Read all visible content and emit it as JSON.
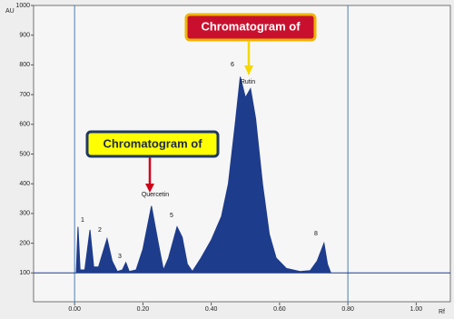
{
  "chart_data": {
    "type": "area",
    "y_label": "AU",
    "x_label": "Rf",
    "xlim": [
      -0.12,
      1.1
    ],
    "ylim": [
      0,
      1000
    ],
    "xticks": [
      {
        "value": 0,
        "label": "0.00"
      },
      {
        "value": 0.2,
        "label": "0.20"
      },
      {
        "value": 0.4,
        "label": "0.40"
      },
      {
        "value": 0.6,
        "label": "0.60"
      },
      {
        "value": 0.8,
        "label": "0.80"
      },
      {
        "value": 1.0,
        "label": "1.00"
      }
    ],
    "yticks": [
      100,
      200,
      300,
      400,
      500,
      600,
      700,
      800,
      900,
      1000
    ],
    "markers": [
      {
        "value": 0,
        "label": "0.00"
      },
      {
        "value": 0.8,
        "label": "0.80"
      }
    ],
    "series": [
      {
        "color": "#1e3c8c",
        "x": [
          -0.12,
          0.005,
          0.01,
          0.016,
          0.03,
          0.045,
          0.056,
          0.07,
          0.095,
          0.11,
          0.125,
          0.14,
          0.15,
          0.16,
          0.18,
          0.2,
          0.225,
          0.245,
          0.26,
          0.275,
          0.3,
          0.315,
          0.33,
          0.345,
          0.37,
          0.4,
          0.43,
          0.45,
          0.47,
          0.485,
          0.5,
          0.515,
          0.53,
          0.55,
          0.57,
          0.59,
          0.62,
          0.66,
          0.69,
          0.71,
          0.73,
          0.74,
          0.75,
          0.8,
          1.1
        ],
        "values": [
          100,
          100,
          255,
          110,
          110,
          245,
          120,
          120,
          215,
          140,
          105,
          110,
          135,
          105,
          110,
          180,
          325,
          200,
          110,
          150,
          255,
          220,
          130,
          105,
          150,
          210,
          290,
          400,
          600,
          760,
          690,
          720,
          620,
          400,
          230,
          150,
          115,
          105,
          108,
          140,
          200,
          130,
          100,
          100,
          100
        ]
      }
    ],
    "peak_labels": [
      "1",
      "2",
      "3",
      "Quercetin",
      "5",
      "6",
      "Rutin",
      "8"
    ],
    "annotations": [
      "Chromatogram of",
      "Chromatogram of"
    ]
  }
}
